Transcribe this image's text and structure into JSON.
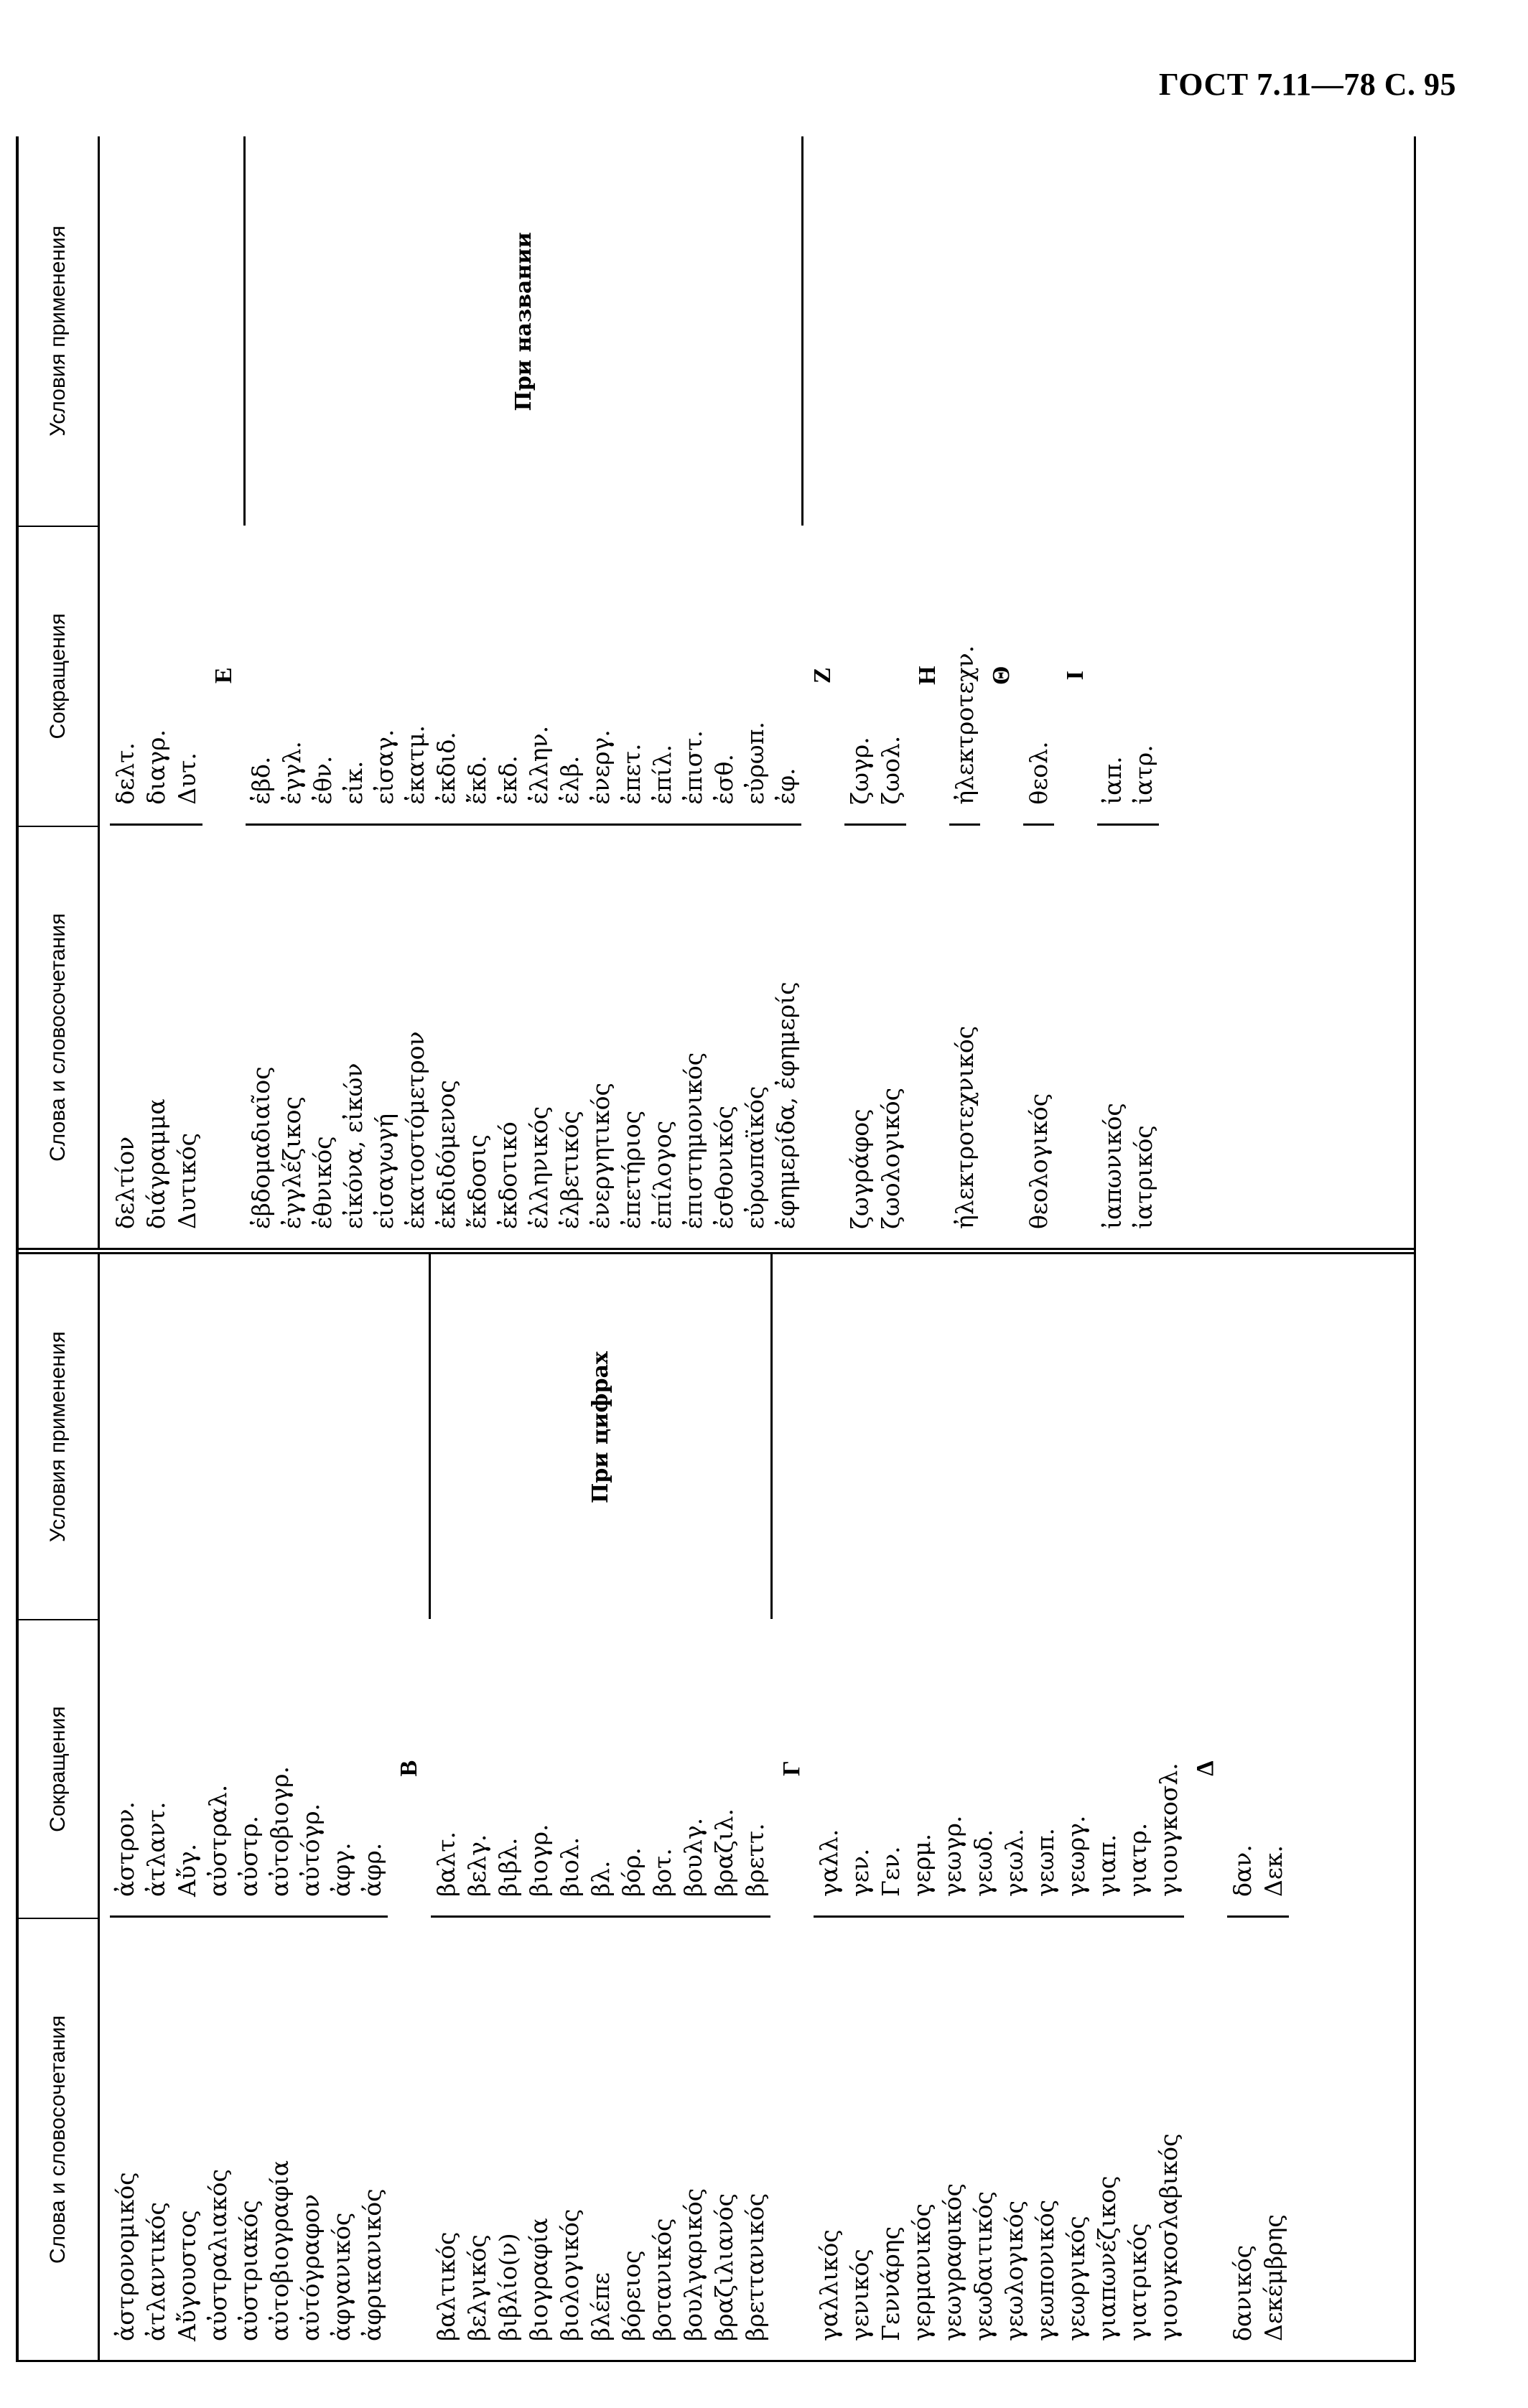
{
  "page_header": "ГОСТ 7.11—78 С. 95",
  "columns": {
    "words": "Слова и словосочетания",
    "abbr": "Сокращения",
    "cond": "Условия применения"
  },
  "left_half": {
    "sections": [
      {
        "letter": "",
        "words": [
          "ἀστρονομικός",
          "ἀτλαντικός",
          "Αὔγουστος",
          "αὐστραλιακός",
          "αὐστριακός",
          "αὐτοβιογραφία",
          "αὐτόγραφον",
          "ἀφγανικός",
          "ἀφρικανικός"
        ],
        "abbrs": [
          "ἀστρον.",
          "ἀτλαντ.",
          "Αὔγ.",
          "αὐστραλ.",
          "αὐστρ.",
          "αὐτοβιογρ.",
          "αὐτόγρ.",
          "ἀφγ.",
          "ἀφρ."
        ],
        "cond": ""
      },
      {
        "letter": "B",
        "words": [
          "βαλτικός",
          "βελγικός",
          "βιβλίο(ν)",
          "βιογραφία",
          "βιολογικός",
          "βλέπε",
          "βόρειος",
          "βοτανικός",
          "βουλγαρικός",
          "βραζιλιανός",
          "βρεττανικός"
        ],
        "abbrs": [
          "βαλτ.",
          "βελγ.",
          "βιβλ.",
          "βιογρ.",
          "βιολ.",
          "βλ.",
          "βόρ.",
          "βοτ.",
          "βουλγ.",
          "βραζιλ.",
          "βρεττ."
        ],
        "cond": "При цифрах"
      },
      {
        "letter": "Γ",
        "words": [
          "γαλλικός",
          "γενικός",
          "Γεννάρης",
          "γερμανικός",
          "γεωγραφικός",
          "γεωδαιτικός",
          "γεωλογικός",
          "γεωπονικός",
          "γεωργικός",
          "γιαπωνέζικος",
          "γιατρικός",
          "γιουγκοσλαβικός"
        ],
        "abbrs": [
          "γαλλ.",
          "γεν.",
          "Γεν.",
          "γερμ.",
          "γεωγρ.",
          "γεωδ.",
          "γεωλ.",
          "γεωπ.",
          "γεωργ.",
          "γιαπ.",
          "γιατρ.",
          "γιουγκοσλ."
        ],
        "cond": ""
      },
      {
        "letter": "Δ",
        "words": [
          "δανικός",
          "Δεκέμβρης"
        ],
        "abbrs": [
          "δαν.",
          "Δεκ."
        ],
        "cond": ""
      }
    ]
  },
  "right_half": {
    "sections": [
      {
        "letter": "",
        "words": [
          "δελτίον",
          "διάγραμμα",
          "Δυτικός"
        ],
        "abbrs": [
          "δελτ.",
          "διαγρ.",
          "Δυτ."
        ],
        "cond": ""
      },
      {
        "letter": "E",
        "words": [
          "ἑβδομαδιαῖος",
          "ἐγγλέζικος",
          "ἐθνικός",
          "εἰκόνα, εἰκών",
          "εἰσαγωγή",
          "ἑκατοστόμετρον",
          "ἐκδιδόμενος",
          "ἔκδοσις",
          "ἐκδοτικό",
          "ἑλληνικός",
          "ἑλβετικός",
          "ἐνεργητικός",
          "ἐπετήριος",
          "ἐπίλογος",
          "ἐπιστημονικός",
          "ἐσθονικός",
          "εὐρωπαϊκός",
          "ἐφημερίδα, ἐφημερίς"
        ],
        "abbrs": [
          "ἑβδ.",
          "ἐγγλ.",
          "ἐθν.",
          "εἰκ.",
          "εἰσαγ.",
          "ἑκατμ.",
          "ἐκδιδ.",
          "ἔκδ.",
          "ἐκδ.",
          "ἑλλην.",
          "ἑλβ.",
          "ἐνεργ.",
          "ἐπετ.",
          "ἐπίλ.",
          "ἐπιστ.",
          "ἐσθ.",
          "εὐρωπ.",
          "ἐφ."
        ],
        "cond": "При названии"
      },
      {
        "letter": "Z",
        "words": [
          "ζωγράφος",
          "ζωολογικός"
        ],
        "abbrs": [
          "ζωγρ.",
          "ζωολ."
        ],
        "cond": ""
      },
      {
        "letter": "H",
        "words": [
          "ἠλεκτροτεχνικός"
        ],
        "abbrs": [
          "ἠλεκτροτεχν."
        ],
        "cond": ""
      },
      {
        "letter": "Θ",
        "words": [
          "θεολογικός"
        ],
        "abbrs": [
          "θεολ."
        ],
        "cond": ""
      },
      {
        "letter": "I",
        "words": [
          "ἰαπωνικός",
          "ἰατρικός"
        ],
        "abbrs": [
          "ἰαπ.",
          "ἰατρ."
        ],
        "cond": ""
      }
    ]
  }
}
